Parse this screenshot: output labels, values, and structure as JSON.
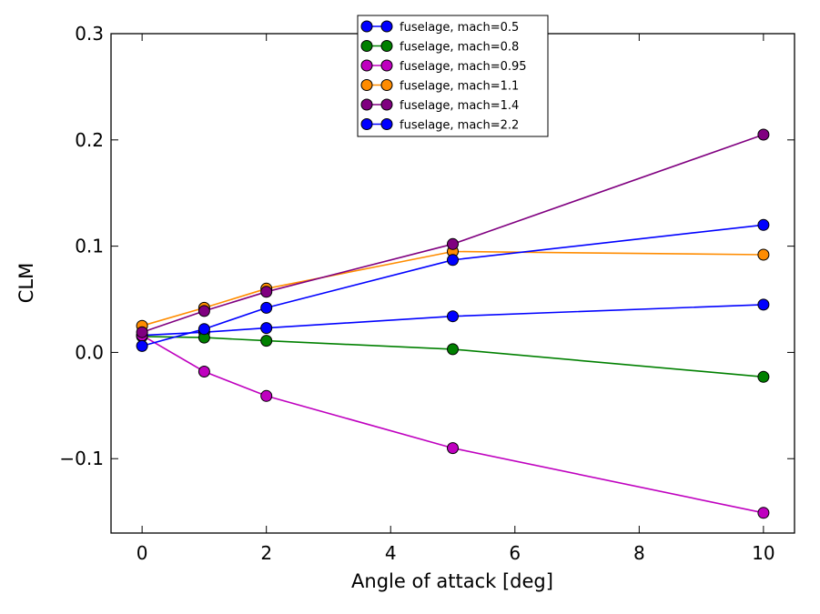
{
  "chart_data": {
    "type": "line",
    "xlabel": "Angle of attack [deg]",
    "ylabel": "CLM",
    "xlim": [
      -0.5,
      10.5
    ],
    "ylim": [
      -0.17,
      0.3
    ],
    "xticks": [
      0,
      2,
      4,
      6,
      8,
      10
    ],
    "yticks": [
      -0.1,
      0.0,
      0.1,
      0.2,
      0.3
    ],
    "xtick_labels": [
      "0",
      "2",
      "4",
      "6",
      "8",
      "10"
    ],
    "ytick_labels": [
      "−0.1",
      "0.0",
      "0.1",
      "0.2",
      "0.3"
    ],
    "grid": false,
    "legend_position": "top-center",
    "x": [
      0,
      1,
      2,
      5,
      10
    ],
    "series": [
      {
        "name": "fuselage, mach=0.5",
        "color": "#0000ff",
        "values": [
          0.016,
          0.019,
          0.023,
          0.034,
          0.045
        ]
      },
      {
        "name": "fuselage, mach=0.8",
        "color": "#008000",
        "values": [
          0.015,
          0.014,
          0.011,
          0.003,
          -0.023
        ]
      },
      {
        "name": "fuselage, mach=0.95",
        "color": "#bf00bf",
        "values": [
          0.016,
          -0.018,
          -0.041,
          -0.09,
          -0.151
        ]
      },
      {
        "name": "fuselage, mach=1.1",
        "color": "#ff8c00",
        "values": [
          0.025,
          0.042,
          0.06,
          0.095,
          0.092
        ]
      },
      {
        "name": "fuselage, mach=1.4",
        "color": "#800080",
        "values": [
          0.019,
          0.039,
          0.057,
          0.102,
          0.205
        ]
      },
      {
        "name": "fuselage, mach=2.2",
        "color": "#0000ff",
        "values": [
          0.006,
          0.022,
          0.042,
          0.087,
          0.12
        ]
      }
    ]
  }
}
